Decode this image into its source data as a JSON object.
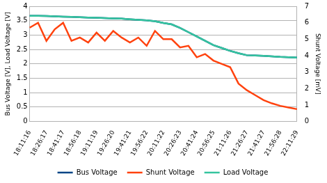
{
  "chart_data": {
    "type": "line",
    "y_label": "Bus Voltage [V], Load Voltage [V]",
    "y2_label": "Shunt Voltage [mV]",
    "categories": [
      "18:11:16",
      null,
      "18:26:17",
      null,
      "18:41:17",
      null,
      "18:56:18",
      null,
      "19:11:19",
      null,
      "19:26:20",
      null,
      "19:41:21",
      null,
      "19:56:22",
      null,
      "20:11:22",
      null,
      "20:26:23",
      null,
      "20:41:24",
      null,
      "20:56:25",
      null,
      "21:11:26",
      null,
      "21:26:27",
      null,
      "21:41:27",
      null,
      "21:56:28",
      null,
      "22:11:29"
    ],
    "series": [
      {
        "name": "Bus Voltage",
        "color": "#004586",
        "line_style": "solid",
        "values": [
          3.67,
          3.67,
          3.66,
          3.65,
          3.64,
          3.63,
          3.62,
          3.61,
          3.6,
          3.59,
          3.58,
          3.57,
          3.55,
          3.53,
          3.51,
          3.48,
          3.42,
          3.37,
          3.25,
          3.1,
          2.95,
          2.8,
          2.65,
          2.55,
          2.45,
          2.37,
          2.3,
          2.29,
          2.28,
          2.26,
          2.24,
          2.23,
          2.22
        ]
      },
      {
        "name": "Shunt Voltage",
        "color": "#ff420e",
        "line_style": "solid",
        "axis": "y2",
        "values": [
          5.7,
          6.0,
          4.9,
          5.6,
          6.0,
          4.9,
          5.1,
          4.8,
          5.4,
          4.9,
          5.5,
          5.1,
          4.8,
          5.1,
          4.6,
          5.5,
          5.0,
          5.0,
          4.5,
          4.6,
          3.9,
          4.1,
          3.7,
          3.5,
          3.3,
          2.3,
          1.9,
          1.6,
          1.3,
          1.1,
          0.95,
          0.85,
          0.75
        ]
      },
      {
        "name": "Load Voltage",
        "color": "#35c49f",
        "line_style": "solid",
        "values": [
          3.67,
          3.67,
          3.66,
          3.65,
          3.64,
          3.63,
          3.62,
          3.61,
          3.6,
          3.59,
          3.58,
          3.57,
          3.55,
          3.53,
          3.51,
          3.48,
          3.42,
          3.37,
          3.25,
          3.1,
          2.95,
          2.8,
          2.65,
          2.55,
          2.45,
          2.37,
          2.3,
          2.29,
          2.28,
          2.26,
          2.24,
          2.23,
          2.22
        ]
      }
    ],
    "ylim": [
      0,
      4
    ],
    "yticks": [
      0,
      0.5,
      1,
      1.5,
      2,
      2.5,
      3,
      3.5,
      4
    ],
    "y2lim": [
      0,
      7
    ],
    "y2ticks": [
      0,
      1,
      2,
      3,
      4,
      5,
      6,
      7
    ],
    "grid": true,
    "legend": "bottom"
  }
}
